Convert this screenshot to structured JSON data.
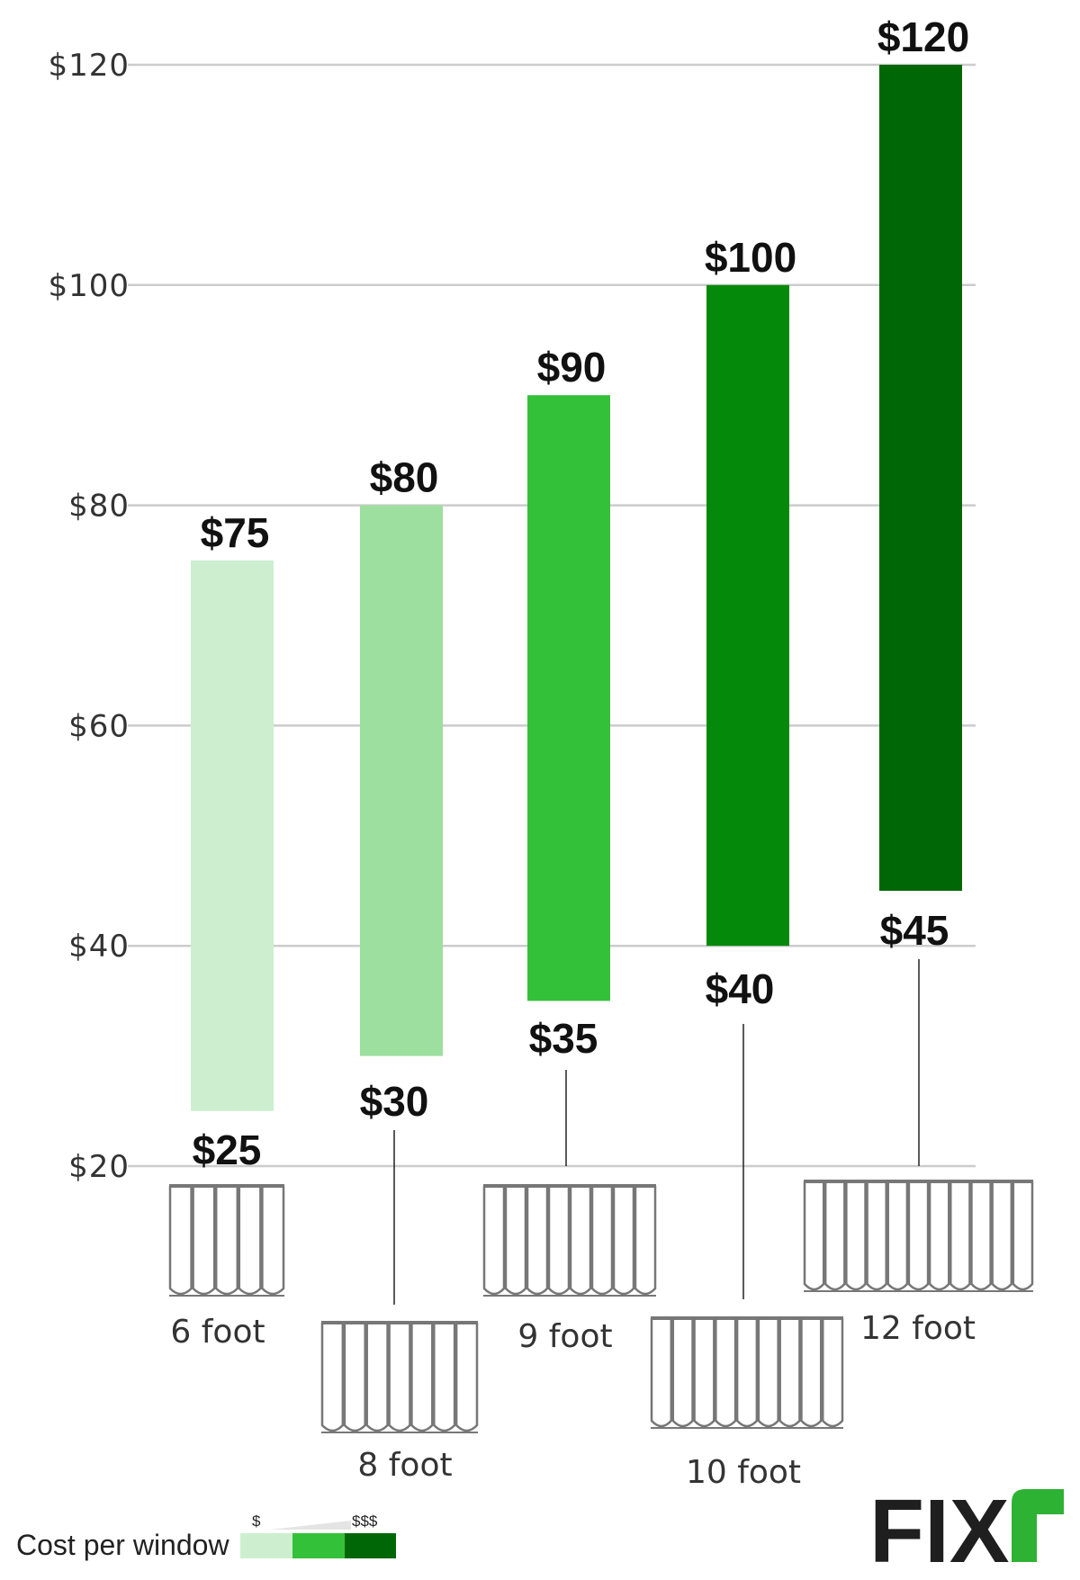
{
  "chart_data": {
    "type": "bar",
    "subtype": "floating-range",
    "categories": [
      "6 foot",
      "8 foot",
      "9 foot",
      "10 foot",
      "12 foot"
    ],
    "low": [
      25,
      30,
      35,
      40,
      45
    ],
    "high": [
      75,
      80,
      90,
      100,
      120
    ],
    "low_labels": [
      "$25",
      "$30",
      "$35",
      "$40",
      "$45"
    ],
    "high_labels": [
      "$75",
      "$80",
      "$90",
      "$100",
      "$120"
    ],
    "colors": [
      "#cdefcf",
      "#9ddf9e",
      "#34c13a",
      "#05890b",
      "#006707"
    ],
    "yticks": [
      20,
      40,
      60,
      80,
      100,
      120
    ],
    "ytick_labels": [
      "$20",
      "$40",
      "$60",
      "$80",
      "$100",
      "$120"
    ],
    "ylim": [
      20,
      120
    ],
    "grid": true,
    "legend": {
      "title": "Cost per window",
      "low_mark": "$",
      "high_mark": "$$$",
      "colors": [
        "#cdefcf",
        "#34c13a",
        "#006707"
      ],
      "placement": "bottom-left"
    },
    "icon": "curtain-icon"
  },
  "brand": {
    "logo_text": "FIXR",
    "accent": "#2db233"
  }
}
